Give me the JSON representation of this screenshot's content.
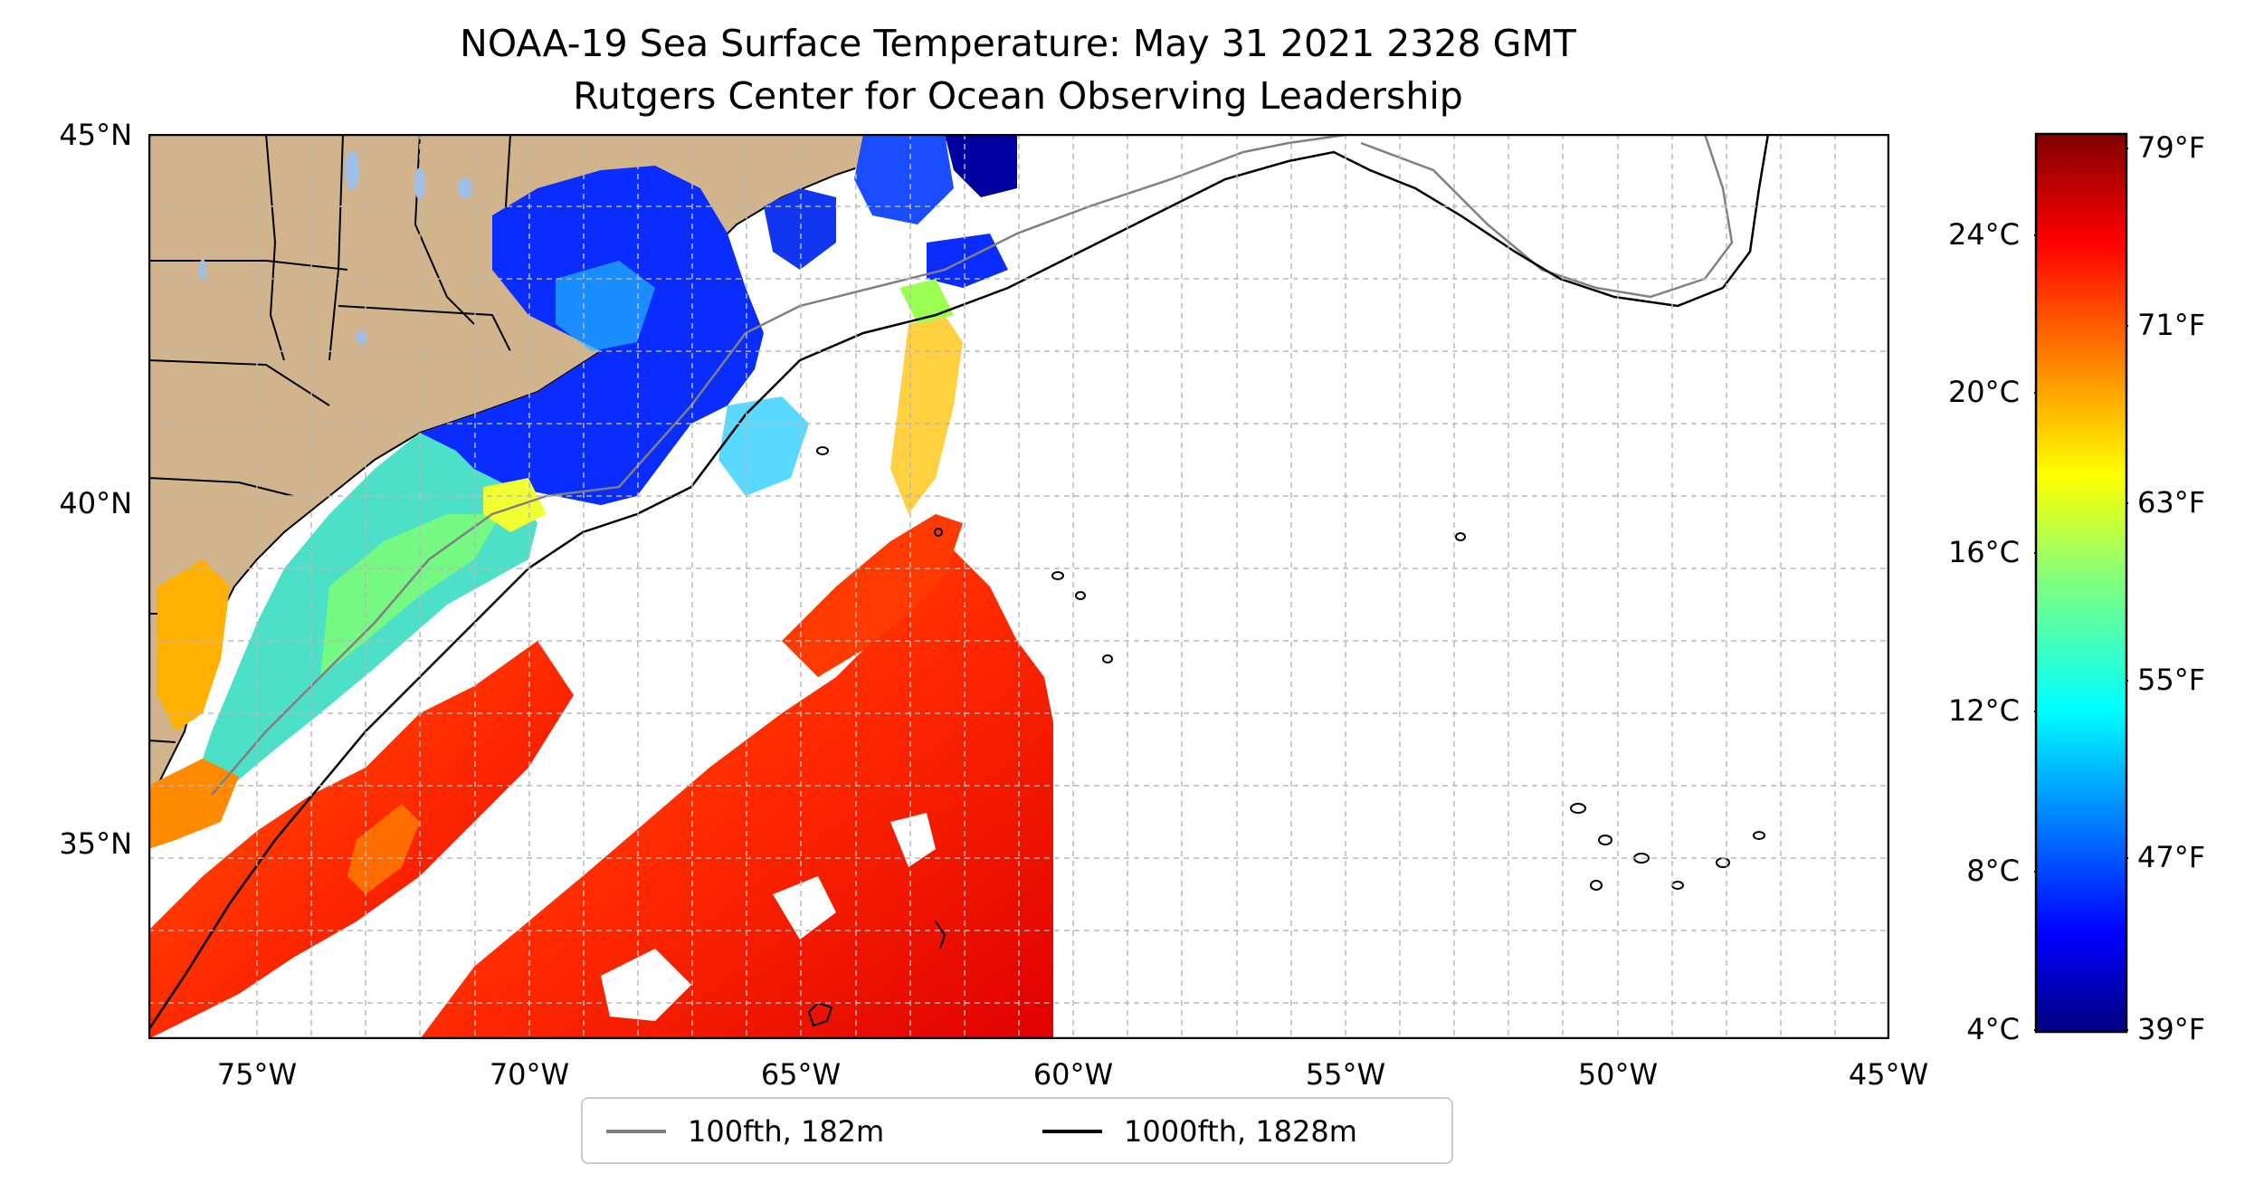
{
  "title": {
    "line1": "NOAA-19 Sea Surface Temperature: May 31 2021 2328 GMT",
    "line2": "Rutgers Center for Ocean Observing Leadership"
  },
  "map": {
    "lon_range": [
      -77,
      -45
    ],
    "lat_range": [
      32.5,
      45
    ],
    "x_ticks": [
      "75°W",
      "70°W",
      "65°W",
      "60°W",
      "55°W",
      "50°W",
      "45°W"
    ],
    "y_ticks": [
      "45°N",
      "40°N",
      "35°N"
    ],
    "grid": true,
    "land_color": "#d2b48c",
    "no_data_color": "#ffffff"
  },
  "colorbar": {
    "colormap": "jet",
    "celsius_ticks": [
      "24°C",
      "20°C",
      "16°C",
      "12°C",
      "8°C",
      "4°C"
    ],
    "fahrenheit_ticks": [
      "79°F",
      "71°F",
      "63°F",
      "55°F",
      "47°F",
      "39°F"
    ],
    "celsius_values": [
      24,
      20,
      16,
      12,
      8,
      4
    ],
    "fahrenheit_values": [
      79,
      71,
      63,
      55,
      47,
      39
    ],
    "range_f": [
      39,
      80
    ]
  },
  "legend": {
    "items": [
      {
        "label": "100fth, 182m",
        "color": "#808080"
      },
      {
        "label": "1000fth, 1828m",
        "color": "#000000"
      }
    ]
  }
}
